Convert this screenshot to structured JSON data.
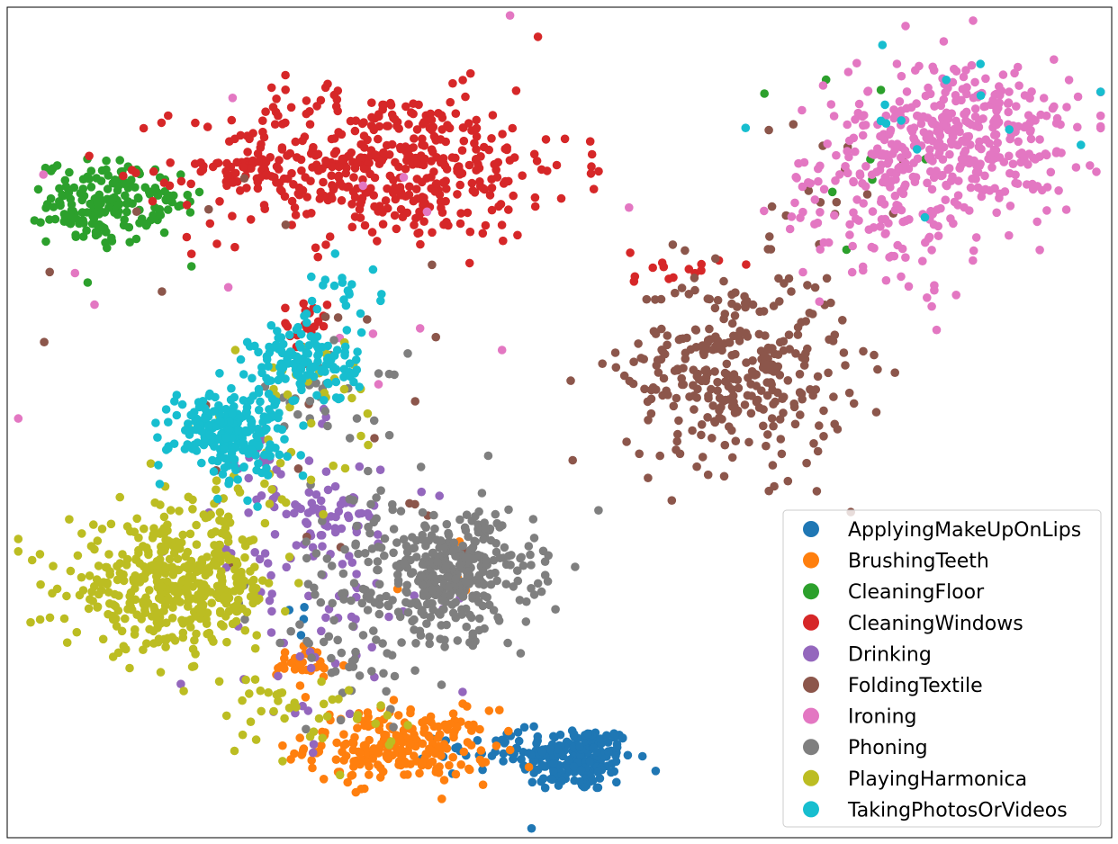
{
  "chart_data": {
    "type": "scatter",
    "title": "",
    "xlabel": "",
    "ylabel": "",
    "axes_ticks": false,
    "grid": false,
    "xlim": [
      0,
      100
    ],
    "ylim": [
      0,
      100
    ],
    "legend": {
      "placement": "bottom-right"
    },
    "series": [
      {
        "name": "ApplyingMakeUpOnLips",
        "color": "#1f77b4",
        "clusters": [
          {
            "center": [
              51.5,
              9.5
            ],
            "spread": [
              2.6,
              2.0
            ],
            "count": 210
          },
          {
            "center": [
              45.0,
              10.5
            ],
            "spread": [
              3.0,
              1.2
            ],
            "count": 40
          },
          {
            "center": [
              26.0,
              26.0
            ],
            "spread": [
              0.5,
              1.5
            ],
            "count": 4
          }
        ]
      },
      {
        "name": "BrushingTeeth",
        "color": "#ff7f0e",
        "clusters": [
          {
            "center": [
              35.5,
              11.0
            ],
            "spread": [
              4.2,
              2.2
            ],
            "count": 230
          },
          {
            "center": [
              27.0,
              20.5
            ],
            "spread": [
              1.8,
              1.3
            ],
            "count": 30
          },
          {
            "center": [
              40.5,
              32.5
            ],
            "spread": [
              2.5,
              2.5
            ],
            "count": 6
          }
        ]
      },
      {
        "name": "CleaningFloor",
        "color": "#2ca02c",
        "clusters": [
          {
            "center": [
              8.5,
              76.5
            ],
            "spread": [
              2.4,
              2.5
            ],
            "count": 160
          },
          {
            "center": [
              14.5,
              76.0
            ],
            "spread": [
              1.6,
              2.4
            ],
            "count": 22
          },
          {
            "center": [
              72.0,
              83.0
            ],
            "spread": [
              8.0,
              8.0
            ],
            "count": 8
          }
        ]
      },
      {
        "name": "CleaningWindows",
        "color": "#d62728",
        "clusters": [
          {
            "center": [
              34.0,
              81.0
            ],
            "spread": [
              8.5,
              4.5
            ],
            "count": 480
          },
          {
            "center": [
              22.0,
              80.5
            ],
            "spread": [
              2.5,
              1.0
            ],
            "count": 30
          },
          {
            "center": [
              27.0,
              62.0
            ],
            "spread": [
              1.0,
              1.4
            ],
            "count": 22
          },
          {
            "center": [
              60.5,
              68.5
            ],
            "spread": [
              2.0,
              1.2
            ],
            "count": 14
          }
        ]
      },
      {
        "name": "Drinking",
        "color": "#9467bd",
        "clusters": [
          {
            "center": [
              29.5,
              39.0
            ],
            "spread": [
              2.2,
              2.2
            ],
            "count": 60
          },
          {
            "center": [
              27.5,
              29.0
            ],
            "spread": [
              6.0,
              9.0
            ],
            "count": 80
          },
          {
            "center": [
              22.5,
              45.0
            ],
            "spread": [
              1.5,
              2.5
            ],
            "count": 20
          }
        ]
      },
      {
        "name": "FoldingTextile",
        "color": "#8c564b",
        "clusters": [
          {
            "center": [
              66.0,
              56.5
            ],
            "spread": [
              5.0,
              6.0
            ],
            "count": 330
          },
          {
            "center": [
              75.0,
              79.0
            ],
            "spread": [
              4.0,
              4.0
            ],
            "count": 14
          },
          {
            "center": [
              24.0,
              55.0
            ],
            "spread": [
              10.0,
              14.0
            ],
            "count": 25
          }
        ]
      },
      {
        "name": "Ironing",
        "color": "#e377c2",
        "clusters": [
          {
            "center": [
              87.0,
              84.0
            ],
            "spread": [
              5.0,
              5.0
            ],
            "count": 360
          },
          {
            "center": [
              79.0,
              78.0
            ],
            "spread": [
              4.5,
              6.5
            ],
            "count": 140
          },
          {
            "center": [
              27.0,
              70.0
            ],
            "spread": [
              14.0,
              12.0
            ],
            "count": 16
          }
        ]
      },
      {
        "name": "Phoning",
        "color": "#7f7f7f",
        "clusters": [
          {
            "center": [
              40.5,
              32.0
            ],
            "spread": [
              3.6,
              3.4
            ],
            "count": 330
          },
          {
            "center": [
              33.0,
              28.0
            ],
            "spread": [
              5.5,
              8.0
            ],
            "count": 120
          },
          {
            "center": [
              29.0,
              53.5
            ],
            "spread": [
              3.5,
              2.5
            ],
            "count": 30
          }
        ]
      },
      {
        "name": "PlayingHarmonica",
        "color": "#bcbd22",
        "clusters": [
          {
            "center": [
              15.0,
              30.0
            ],
            "spread": [
              4.8,
              3.6
            ],
            "count": 420
          },
          {
            "center": [
              19.5,
              40.5
            ],
            "spread": [
              3.5,
              3.0
            ],
            "count": 40
          },
          {
            "center": [
              27.0,
              14.5
            ],
            "spread": [
              4.0,
              2.5
            ],
            "count": 40
          },
          {
            "center": [
              27.5,
              54.0
            ],
            "spread": [
              3.0,
              4.0
            ],
            "count": 30
          }
        ]
      },
      {
        "name": "TakingPhotosOrVideos",
        "color": "#17becf",
        "clusters": [
          {
            "center": [
              20.0,
              49.0
            ],
            "spread": [
              2.6,
              2.6
            ],
            "count": 220
          },
          {
            "center": [
              27.0,
              57.0
            ],
            "spread": [
              2.4,
              2.4
            ],
            "count": 130
          },
          {
            "center": [
              30.0,
              66.0
            ],
            "spread": [
              2.0,
              1.6
            ],
            "count": 20
          },
          {
            "center": [
              84.5,
              88.0
            ],
            "spread": [
              7.0,
              5.0
            ],
            "count": 14
          }
        ]
      }
    ]
  }
}
